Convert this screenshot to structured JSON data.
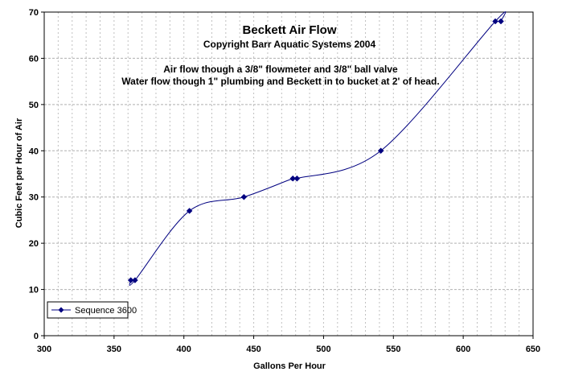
{
  "chart_data": {
    "type": "scatter",
    "title": "Beckett Air Flow",
    "subtitle": "Copyright Barr Aquatic Systems 2004",
    "annotations": [
      "Air flow though a 3/8\" flowmeter and 3/8\" ball valve",
      "Water flow though 1\" plumbing and Beckett in to bucket at 2' of head."
    ],
    "xlabel": "Gallons Per Hour",
    "ylabel": "Cubic Feet per Hour of Air",
    "xlim": [
      300,
      650
    ],
    "ylim": [
      0,
      70
    ],
    "xticks": [
      300,
      350,
      400,
      450,
      500,
      550,
      600,
      650
    ],
    "yticks": [
      0,
      10,
      20,
      30,
      40,
      50,
      60,
      70
    ],
    "grid": true,
    "legend_position": "bottom-left",
    "series": [
      {
        "name": "Sequence 3600",
        "color": "#000080",
        "smooth": true,
        "points": [
          {
            "x": 362,
            "y": 12
          },
          {
            "x": 365,
            "y": 12
          },
          {
            "x": 404,
            "y": 27
          },
          {
            "x": 443,
            "y": 30
          },
          {
            "x": 478,
            "y": 34
          },
          {
            "x": 481,
            "y": 34
          },
          {
            "x": 541,
            "y": 40
          },
          {
            "x": 623,
            "y": 68
          },
          {
            "x": 627,
            "y": 68
          }
        ]
      }
    ]
  }
}
